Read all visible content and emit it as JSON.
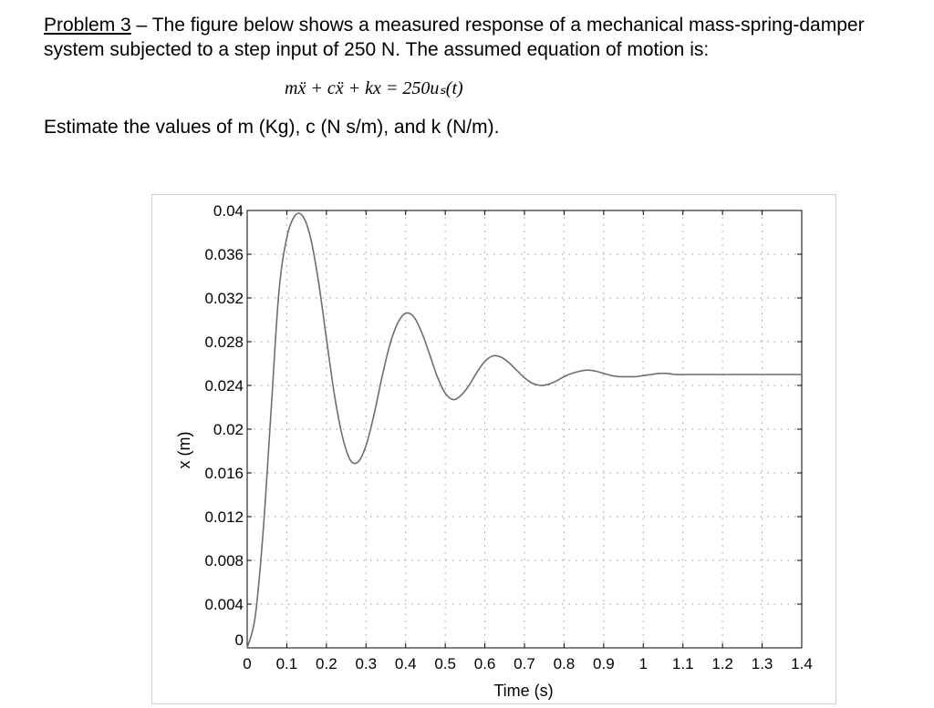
{
  "problem": {
    "heading": "Problem 3",
    "intro": " – The figure below shows a measured response of a mechanical mass-spring-damper system subjected to a step input of 250 N.   The assumed equation of motion is:",
    "equation": "mẍ + cẍ + kx = 250uₛ(t)",
    "task": "Estimate the values of m (Kg), c (N s/m), and k (N/m)."
  },
  "chart_data": {
    "type": "line",
    "xlabel": "Time (s)",
    "ylabel": "x (m)",
    "xlim": [
      0,
      1.4
    ],
    "ylim": [
      0,
      0.04
    ],
    "xticks": [
      0,
      0.1,
      0.2,
      0.3,
      0.4,
      0.5,
      0.6,
      0.7,
      0.8,
      0.9,
      1,
      1.1,
      1.2,
      1.3,
      1.4
    ],
    "xtick_labels": [
      "0",
      "0.1",
      "0.2",
      "0.3",
      "0.4",
      "0.5",
      "0.6",
      "0.7",
      "0.8",
      "0.9",
      "1",
      "1.1",
      "1.2",
      "1.3",
      "1.4"
    ],
    "yticks": [
      0,
      0.004,
      0.008,
      0.012,
      0.016,
      0.02,
      0.024,
      0.028,
      0.032,
      0.036,
      0.04
    ],
    "ytick_labels": [
      "0",
      "0.004",
      "0.008",
      "0.012",
      "0.016",
      "0.02",
      "0.024",
      "0.028",
      "0.032",
      "0.036",
      "0.04"
    ],
    "grid": true,
    "x": [
      0,
      0.02,
      0.04,
      0.06,
      0.08,
      0.1,
      0.12,
      0.14,
      0.16,
      0.18,
      0.2,
      0.22,
      0.24,
      0.26,
      0.28,
      0.3,
      0.32,
      0.34,
      0.36,
      0.38,
      0.4,
      0.42,
      0.44,
      0.46,
      0.48,
      0.5,
      0.52,
      0.54,
      0.56,
      0.58,
      0.6,
      0.62,
      0.64,
      0.66,
      0.68,
      0.7,
      0.72,
      0.74,
      0.76,
      0.78,
      0.8,
      0.82,
      0.84,
      0.86,
      0.88,
      0.9,
      0.92,
      0.94,
      0.96,
      0.98,
      1.0,
      1.02,
      1.04,
      1.06,
      1.08,
      1.1,
      1.12,
      1.14,
      1.16,
      1.18,
      1.2,
      1.22,
      1.24,
      1.26,
      1.28,
      1.3,
      1.32,
      1.34,
      1.36,
      1.38,
      1.4
    ],
    "y": [
      0,
      0.0028,
      0.0105,
      0.0215,
      0.0325,
      0.0375,
      0.0395,
      0.0395,
      0.0375,
      0.0335,
      0.0283,
      0.0232,
      0.0194,
      0.0172,
      0.017,
      0.0185,
      0.0213,
      0.0247,
      0.0277,
      0.0297,
      0.0306,
      0.0303,
      0.0289,
      0.0269,
      0.0248,
      0.0233,
      0.0227,
      0.0231,
      0.024,
      0.0252,
      0.0262,
      0.0267,
      0.0266,
      0.0261,
      0.0254,
      0.0247,
      0.0242,
      0.024,
      0.0241,
      0.0244,
      0.0248,
      0.0251,
      0.0253,
      0.0254,
      0.0253,
      0.0251,
      0.0249,
      0.0248,
      0.0248,
      0.0248,
      0.0249,
      0.025,
      0.0251,
      0.0251,
      0.025,
      0.025,
      0.025,
      0.025,
      0.025,
      0.025,
      0.025,
      0.025,
      0.025,
      0.025,
      0.025,
      0.025,
      0.025,
      0.025,
      0.025,
      0.025,
      0.025
    ]
  }
}
